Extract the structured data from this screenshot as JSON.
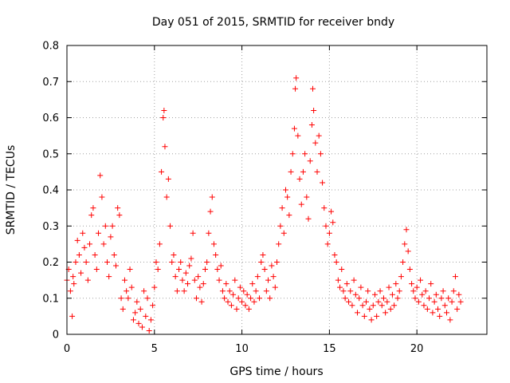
{
  "chart_data": {
    "type": "scatter",
    "title": "Day 051 of 2015, SRMTID for receiver bndy",
    "xlabel": "GPS time / hours",
    "ylabel": "SRMTID / TECUs",
    "xlim": [
      0,
      24
    ],
    "ylim": [
      0,
      0.8
    ],
    "xticks": [
      0,
      5,
      10,
      15,
      20
    ],
    "yticks": [
      0,
      0.1,
      0.2,
      0.3,
      0.4,
      0.5,
      0.6,
      0.7,
      0.8
    ],
    "xtick_labels": [
      "0",
      "5",
      "10",
      "15",
      "20"
    ],
    "ytick_labels": [
      "0",
      "0.1",
      "0.2",
      "0.3",
      "0.4",
      "0.5",
      "0.6",
      "0.7",
      "0.8"
    ],
    "grid": true,
    "marker": "+",
    "color": "#ff0000",
    "series": [
      {
        "name": "SRMTID",
        "points": [
          [
            0.0,
            0.15
          ],
          [
            0.1,
            0.18
          ],
          [
            0.2,
            0.12
          ],
          [
            0.3,
            0.05
          ],
          [
            0.35,
            0.16
          ],
          [
            0.4,
            0.14
          ],
          [
            0.5,
            0.2
          ],
          [
            0.6,
            0.26
          ],
          [
            0.7,
            0.22
          ],
          [
            0.8,
            0.17
          ],
          [
            0.9,
            0.28
          ],
          [
            1.0,
            0.24
          ],
          [
            1.1,
            0.2
          ],
          [
            1.2,
            0.15
          ],
          [
            1.3,
            0.25
          ],
          [
            1.4,
            0.33
          ],
          [
            1.5,
            0.35
          ],
          [
            1.6,
            0.22
          ],
          [
            1.7,
            0.18
          ],
          [
            1.8,
            0.28
          ],
          [
            1.9,
            0.44
          ],
          [
            2.0,
            0.38
          ],
          [
            2.1,
            0.25
          ],
          [
            2.2,
            0.3
          ],
          [
            2.3,
            0.2
          ],
          [
            2.4,
            0.16
          ],
          [
            2.5,
            0.27
          ],
          [
            2.6,
            0.3
          ],
          [
            2.7,
            0.22
          ],
          [
            2.8,
            0.19
          ],
          [
            2.9,
            0.35
          ],
          [
            3.0,
            0.33
          ],
          [
            3.1,
            0.1
          ],
          [
            3.2,
            0.07
          ],
          [
            3.3,
            0.15
          ],
          [
            3.4,
            0.12
          ],
          [
            3.5,
            0.1
          ],
          [
            3.6,
            0.18
          ],
          [
            3.7,
            0.13
          ],
          [
            3.8,
            0.04
          ],
          [
            3.9,
            0.06
          ],
          [
            4.0,
            0.09
          ],
          [
            4.1,
            0.03
          ],
          [
            4.2,
            0.07
          ],
          [
            4.3,
            0.02
          ],
          [
            4.4,
            0.12
          ],
          [
            4.5,
            0.05
          ],
          [
            4.6,
            0.1
          ],
          [
            4.7,
            0.01
          ],
          [
            4.8,
            0.04
          ],
          [
            4.9,
            0.08
          ],
          [
            5.0,
            0.13
          ],
          [
            5.1,
            0.2
          ],
          [
            5.2,
            0.18
          ],
          [
            5.3,
            0.25
          ],
          [
            5.4,
            0.45
          ],
          [
            5.5,
            0.6
          ],
          [
            5.55,
            0.62
          ],
          [
            5.6,
            0.52
          ],
          [
            5.7,
            0.38
          ],
          [
            5.8,
            0.43
          ],
          [
            5.9,
            0.3
          ],
          [
            6.0,
            0.2
          ],
          [
            6.1,
            0.22
          ],
          [
            6.2,
            0.16
          ],
          [
            6.3,
            0.12
          ],
          [
            6.4,
            0.18
          ],
          [
            6.5,
            0.2
          ],
          [
            6.6,
            0.15
          ],
          [
            6.7,
            0.12
          ],
          [
            6.8,
            0.17
          ],
          [
            6.9,
            0.14
          ],
          [
            7.0,
            0.19
          ],
          [
            7.1,
            0.21
          ],
          [
            7.2,
            0.28
          ],
          [
            7.3,
            0.15
          ],
          [
            7.4,
            0.1
          ],
          [
            7.5,
            0.16
          ],
          [
            7.6,
            0.13
          ],
          [
            7.7,
            0.09
          ],
          [
            7.8,
            0.14
          ],
          [
            7.9,
            0.18
          ],
          [
            8.0,
            0.2
          ],
          [
            8.1,
            0.28
          ],
          [
            8.2,
            0.34
          ],
          [
            8.3,
            0.38
          ],
          [
            8.4,
            0.25
          ],
          [
            8.5,
            0.22
          ],
          [
            8.6,
            0.18
          ],
          [
            8.7,
            0.15
          ],
          [
            8.8,
            0.19
          ],
          [
            8.9,
            0.12
          ],
          [
            9.0,
            0.1
          ],
          [
            9.1,
            0.14
          ],
          [
            9.2,
            0.09
          ],
          [
            9.3,
            0.12
          ],
          [
            9.4,
            0.08
          ],
          [
            9.5,
            0.11
          ],
          [
            9.6,
            0.15
          ],
          [
            9.7,
            0.07
          ],
          [
            9.8,
            0.1
          ],
          [
            9.9,
            0.13
          ],
          [
            10.0,
            0.09
          ],
          [
            10.1,
            0.12
          ],
          [
            10.2,
            0.08
          ],
          [
            10.3,
            0.11
          ],
          [
            10.4,
            0.07
          ],
          [
            10.5,
            0.1
          ],
          [
            10.6,
            0.14
          ],
          [
            10.7,
            0.09
          ],
          [
            10.8,
            0.12
          ],
          [
            10.9,
            0.16
          ],
          [
            11.0,
            0.1
          ],
          [
            11.1,
            0.2
          ],
          [
            11.2,
            0.22
          ],
          [
            11.3,
            0.18
          ],
          [
            11.4,
            0.12
          ],
          [
            11.5,
            0.15
          ],
          [
            11.6,
            0.1
          ],
          [
            11.7,
            0.19
          ],
          [
            11.8,
            0.16
          ],
          [
            11.9,
            0.13
          ],
          [
            12.0,
            0.2
          ],
          [
            12.1,
            0.25
          ],
          [
            12.2,
            0.3
          ],
          [
            12.3,
            0.35
          ],
          [
            12.4,
            0.28
          ],
          [
            12.5,
            0.4
          ],
          [
            12.6,
            0.38
          ],
          [
            12.7,
            0.33
          ],
          [
            12.8,
            0.45
          ],
          [
            12.9,
            0.5
          ],
          [
            13.0,
            0.57
          ],
          [
            13.05,
            0.68
          ],
          [
            13.1,
            0.71
          ],
          [
            13.2,
            0.55
          ],
          [
            13.3,
            0.43
          ],
          [
            13.4,
            0.36
          ],
          [
            13.5,
            0.45
          ],
          [
            13.6,
            0.5
          ],
          [
            13.7,
            0.38
          ],
          [
            13.8,
            0.32
          ],
          [
            13.9,
            0.48
          ],
          [
            14.0,
            0.58
          ],
          [
            14.05,
            0.68
          ],
          [
            14.1,
            0.62
          ],
          [
            14.2,
            0.53
          ],
          [
            14.3,
            0.45
          ],
          [
            14.4,
            0.55
          ],
          [
            14.5,
            0.5
          ],
          [
            14.6,
            0.42
          ],
          [
            14.7,
            0.35
          ],
          [
            14.8,
            0.3
          ],
          [
            14.9,
            0.25
          ],
          [
            15.0,
            0.28
          ],
          [
            15.1,
            0.34
          ],
          [
            15.2,
            0.31
          ],
          [
            15.3,
            0.22
          ],
          [
            15.4,
            0.2
          ],
          [
            15.5,
            0.15
          ],
          [
            15.6,
            0.13
          ],
          [
            15.7,
            0.18
          ],
          [
            15.8,
            0.12
          ],
          [
            15.9,
            0.1
          ],
          [
            16.0,
            0.14
          ],
          [
            16.1,
            0.09
          ],
          [
            16.2,
            0.12
          ],
          [
            16.3,
            0.08
          ],
          [
            16.4,
            0.15
          ],
          [
            16.5,
            0.11
          ],
          [
            16.6,
            0.06
          ],
          [
            16.7,
            0.1
          ],
          [
            16.8,
            0.13
          ],
          [
            16.9,
            0.08
          ],
          [
            17.0,
            0.05
          ],
          [
            17.1,
            0.09
          ],
          [
            17.2,
            0.12
          ],
          [
            17.3,
            0.07
          ],
          [
            17.4,
            0.04
          ],
          [
            17.5,
            0.08
          ],
          [
            17.6,
            0.11
          ],
          [
            17.7,
            0.05
          ],
          [
            17.8,
            0.09
          ],
          [
            17.9,
            0.12
          ],
          [
            18.0,
            0.08
          ],
          [
            18.1,
            0.1
          ],
          [
            18.2,
            0.06
          ],
          [
            18.3,
            0.09
          ],
          [
            18.4,
            0.13
          ],
          [
            18.5,
            0.07
          ],
          [
            18.6,
            0.11
          ],
          [
            18.7,
            0.08
          ],
          [
            18.8,
            0.14
          ],
          [
            18.9,
            0.1
          ],
          [
            19.0,
            0.12
          ],
          [
            19.1,
            0.16
          ],
          [
            19.2,
            0.2
          ],
          [
            19.3,
            0.25
          ],
          [
            19.4,
            0.29
          ],
          [
            19.5,
            0.23
          ],
          [
            19.6,
            0.18
          ],
          [
            19.7,
            0.14
          ],
          [
            19.8,
            0.12
          ],
          [
            19.9,
            0.1
          ],
          [
            20.0,
            0.13
          ],
          [
            20.1,
            0.09
          ],
          [
            20.2,
            0.15
          ],
          [
            20.3,
            0.11
          ],
          [
            20.4,
            0.08
          ],
          [
            20.5,
            0.12
          ],
          [
            20.6,
            0.07
          ],
          [
            20.7,
            0.1
          ],
          [
            20.8,
            0.14
          ],
          [
            20.9,
            0.06
          ],
          [
            21.0,
            0.09
          ],
          [
            21.1,
            0.11
          ],
          [
            21.2,
            0.07
          ],
          [
            21.3,
            0.05
          ],
          [
            21.4,
            0.1
          ],
          [
            21.5,
            0.12
          ],
          [
            21.6,
            0.08
          ],
          [
            21.7,
            0.06
          ],
          [
            21.8,
            0.1
          ],
          [
            21.9,
            0.04
          ],
          [
            22.0,
            0.09
          ],
          [
            22.1,
            0.12
          ],
          [
            22.2,
            0.16
          ],
          [
            22.3,
            0.07
          ],
          [
            22.4,
            0.11
          ],
          [
            22.5,
            0.09
          ]
        ]
      }
    ]
  }
}
